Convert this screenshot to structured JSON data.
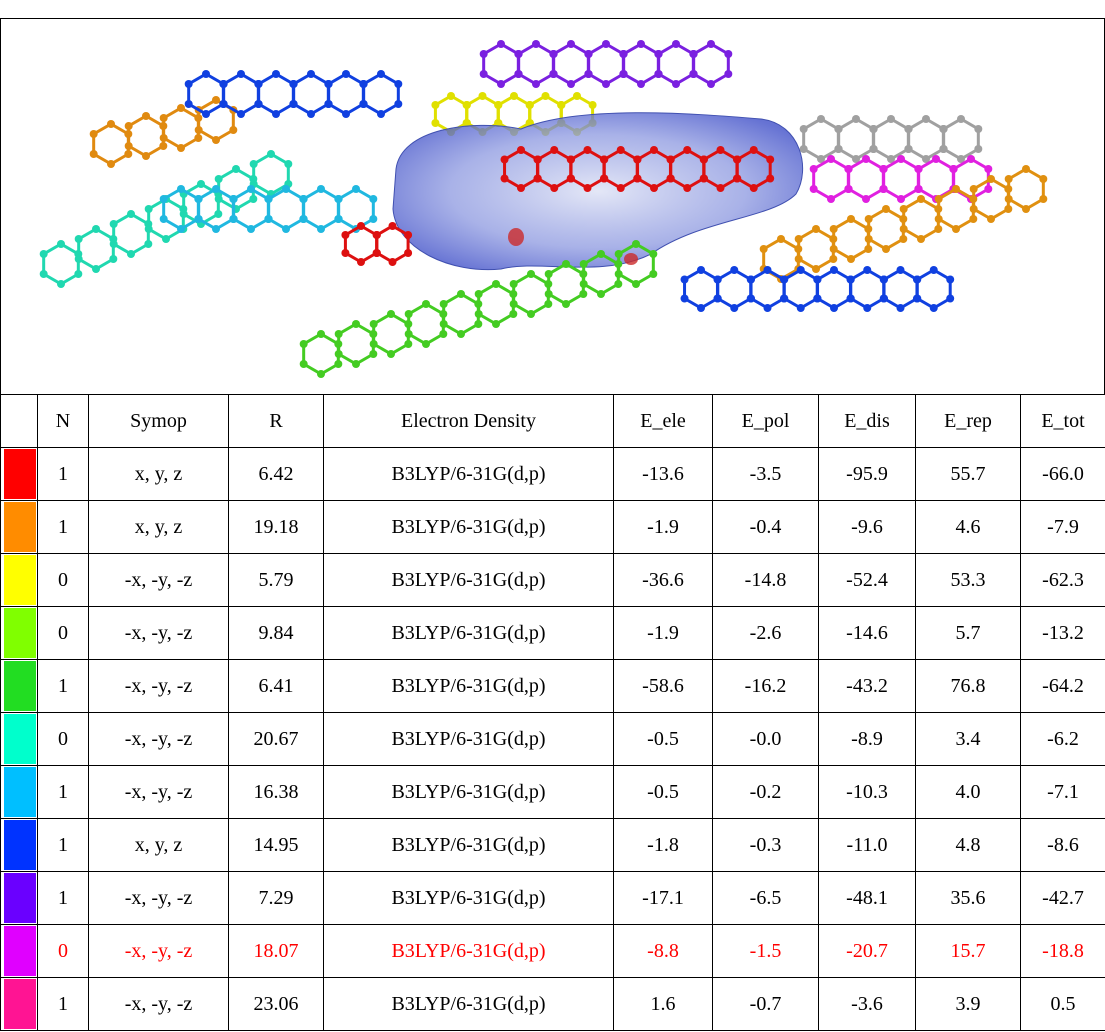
{
  "table": {
    "header": [
      "N",
      "Symop",
      "R",
      "Electron Density",
      "E_ele",
      "E_pol",
      "E_dis",
      "E_rep",
      "E_tot"
    ],
    "rows": [
      {
        "swatch": "#ff0000",
        "text_color": "#000000",
        "cells": [
          "1",
          "x, y, z",
          "6.42",
          "B3LYP/6-31G(d,p)",
          "-13.6",
          "-3.5",
          "-95.9",
          "55.7",
          "-66.0"
        ]
      },
      {
        "swatch": "#ff8c00",
        "text_color": "#000000",
        "cells": [
          "1",
          "x, y, z",
          "19.18",
          "B3LYP/6-31G(d,p)",
          "-1.9",
          "-0.4",
          "-9.6",
          "4.6",
          "-7.9"
        ]
      },
      {
        "swatch": "#ffff00",
        "text_color": "#000000",
        "cells": [
          "0",
          "-x, -y, -z",
          "5.79",
          "B3LYP/6-31G(d,p)",
          "-36.6",
          "-14.8",
          "-52.4",
          "53.3",
          "-62.3"
        ]
      },
      {
        "swatch": "#80ff00",
        "text_color": "#000000",
        "cells": [
          "0",
          "-x, -y, -z",
          "9.84",
          "B3LYP/6-31G(d,p)",
          "-1.9",
          "-2.6",
          "-14.6",
          "5.7",
          "-13.2"
        ]
      },
      {
        "swatch": "#22dd22",
        "text_color": "#000000",
        "cells": [
          "1",
          "-x, -y, -z",
          "6.41",
          "B3LYP/6-31G(d,p)",
          "-58.6",
          "-16.2",
          "-43.2",
          "76.8",
          "-64.2"
        ]
      },
      {
        "swatch": "#00ffcc",
        "text_color": "#000000",
        "cells": [
          "0",
          "-x, -y, -z",
          "20.67",
          "B3LYP/6-31G(d,p)",
          "-0.5",
          "-0.0",
          "-8.9",
          "3.4",
          "-6.2"
        ]
      },
      {
        "swatch": "#00bfff",
        "text_color": "#000000",
        "cells": [
          "1",
          "-x, -y, -z",
          "16.38",
          "B3LYP/6-31G(d,p)",
          "-0.5",
          "-0.2",
          "-10.3",
          "4.0",
          "-7.1"
        ]
      },
      {
        "swatch": "#0033ff",
        "text_color": "#000000",
        "cells": [
          "1",
          "x, y, z",
          "14.95",
          "B3LYP/6-31G(d,p)",
          "-1.8",
          "-0.3",
          "-11.0",
          "4.8",
          "-8.6"
        ]
      },
      {
        "swatch": "#6a00ff",
        "text_color": "#000000",
        "cells": [
          "1",
          "-x, -y, -z",
          "7.29",
          "B3LYP/6-31G(d,p)",
          "-17.1",
          "-6.5",
          "-48.1",
          "35.6",
          "-42.7"
        ]
      },
      {
        "swatch": "#e000ff",
        "text_color": "#ff0000",
        "cells": [
          "0",
          "-x, -y, -z",
          "18.07",
          "B3LYP/6-31G(d,p)",
          "-8.8",
          "-1.5",
          "-20.7",
          "15.7",
          "-18.8"
        ]
      },
      {
        "swatch": "#ff1493",
        "text_color": "#000000",
        "cells": [
          "1",
          "-x, -y, -z",
          "23.06",
          "B3LYP/6-31G(d,p)",
          "1.6",
          "-0.7",
          "-3.6",
          "3.9",
          "0.5"
        ]
      }
    ]
  }
}
